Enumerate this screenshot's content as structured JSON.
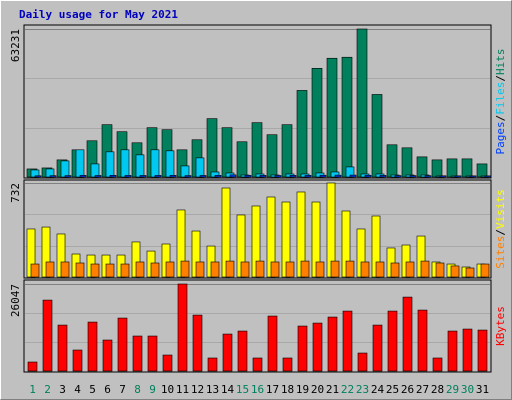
{
  "chart_data": [
    {
      "type": "bar",
      "title": "Daily usage for May 2021",
      "ylim": [
        0,
        63231
      ],
      "yticks": [
        63231
      ],
      "separator": "/",
      "series": [
        {
          "name": "Hits",
          "color": "#00805c",
          "values": [
            3440,
            3870,
            7310,
            11610,
            15480,
            22360,
            19350,
            14620,
            21070,
            20210,
            11610,
            15910,
            24940,
            21070,
            15050,
            23220,
            18060,
            22360,
            36980,
            46440,
            50740,
            51170,
            63231,
            35260,
            13760,
            12470,
            8600,
            7310,
            7740,
            7740,
            5590
          ]
        },
        {
          "name": "Files",
          "color": "#00c8f0",
          "values": [
            3010,
            3440,
            6880,
            11610,
            5590,
            10750,
            11610,
            9460,
            11610,
            11180,
            4730,
            8170,
            2150,
            1720,
            860,
            1290,
            860,
            1290,
            1290,
            1720,
            2150,
            4300,
            1290,
            1290,
            860,
            860,
            860,
            430,
            430,
            430,
            430
          ]
        },
        {
          "name": "Pages",
          "color": "#0040ff",
          "values": [
            520,
            560,
            610,
            700,
            650,
            720,
            680,
            640,
            690,
            700,
            600,
            650,
            720,
            900,
            700,
            680,
            640,
            690,
            700,
            760,
            800,
            820,
            740,
            680,
            610,
            590,
            560,
            520,
            500,
            490,
            480
          ]
        }
      ]
    },
    {
      "type": "bar",
      "ylim": [
        0,
        732
      ],
      "yticks": [
        732
      ],
      "separator": "/",
      "series": [
        {
          "name": "Visits",
          "color": "#ffff00",
          "values": [
            374,
            389,
            335,
            179,
            171,
            171,
            171,
            273,
            202,
            257,
            522,
            358,
            241,
            693,
            483,
            553,
            623,
            584,
            662,
            584,
            732,
            514,
            374,
            475,
            226,
            249,
            319,
            117,
            101,
            78,
            101
          ]
        },
        {
          "name": "Sites",
          "color": "#ff8000",
          "values": [
            101,
            117,
            117,
            109,
            101,
            101,
            101,
            117,
            109,
            117,
            124,
            117,
            117,
            124,
            117,
            124,
            117,
            117,
            124,
            117,
            124,
            124,
            117,
            117,
            109,
            117,
            124,
            109,
            86,
            70,
            101
          ]
        }
      ]
    },
    {
      "type": "bar",
      "ylim": [
        0,
        26047
      ],
      "yticks": [
        26047
      ],
      "categories": [
        "1",
        "2",
        "3",
        "4",
        "5",
        "6",
        "7",
        "8",
        "9",
        "10",
        "11",
        "12",
        "13",
        "14",
        "15",
        "16",
        "17",
        "18",
        "19",
        "20",
        "21",
        "22",
        "23",
        "24",
        "25",
        "26",
        "27",
        "28",
        "29",
        "30",
        "31"
      ],
      "label_colors": [
        "#00805c",
        "#00805c",
        "#000000",
        "#000000",
        "#000000",
        "#000000",
        "#000000",
        "#00805c",
        "#00805c",
        "#000000",
        "#000000",
        "#000000",
        "#000000",
        "#000000",
        "#00805c",
        "#00805c",
        "#000000",
        "#000000",
        "#000000",
        "#000000",
        "#000000",
        "#00805c",
        "#00805c",
        "#000000",
        "#000000",
        "#000000",
        "#000000",
        "#000000",
        "#00805c",
        "#00805c",
        "#000000"
      ],
      "series": [
        {
          "name": "KBytes",
          "color": "#ff0000",
          "values": [
            2690,
            21230,
            13750,
            6280,
            14650,
            9270,
            15850,
            10470,
            10470,
            4780,
            26047,
            16740,
            3890,
            11060,
            11960,
            3890,
            16450,
            3890,
            13460,
            14350,
            16150,
            17940,
            5380,
            13750,
            17940,
            22130,
            18240,
            3890,
            11960,
            12560,
            12260
          ]
        }
      ]
    }
  ]
}
